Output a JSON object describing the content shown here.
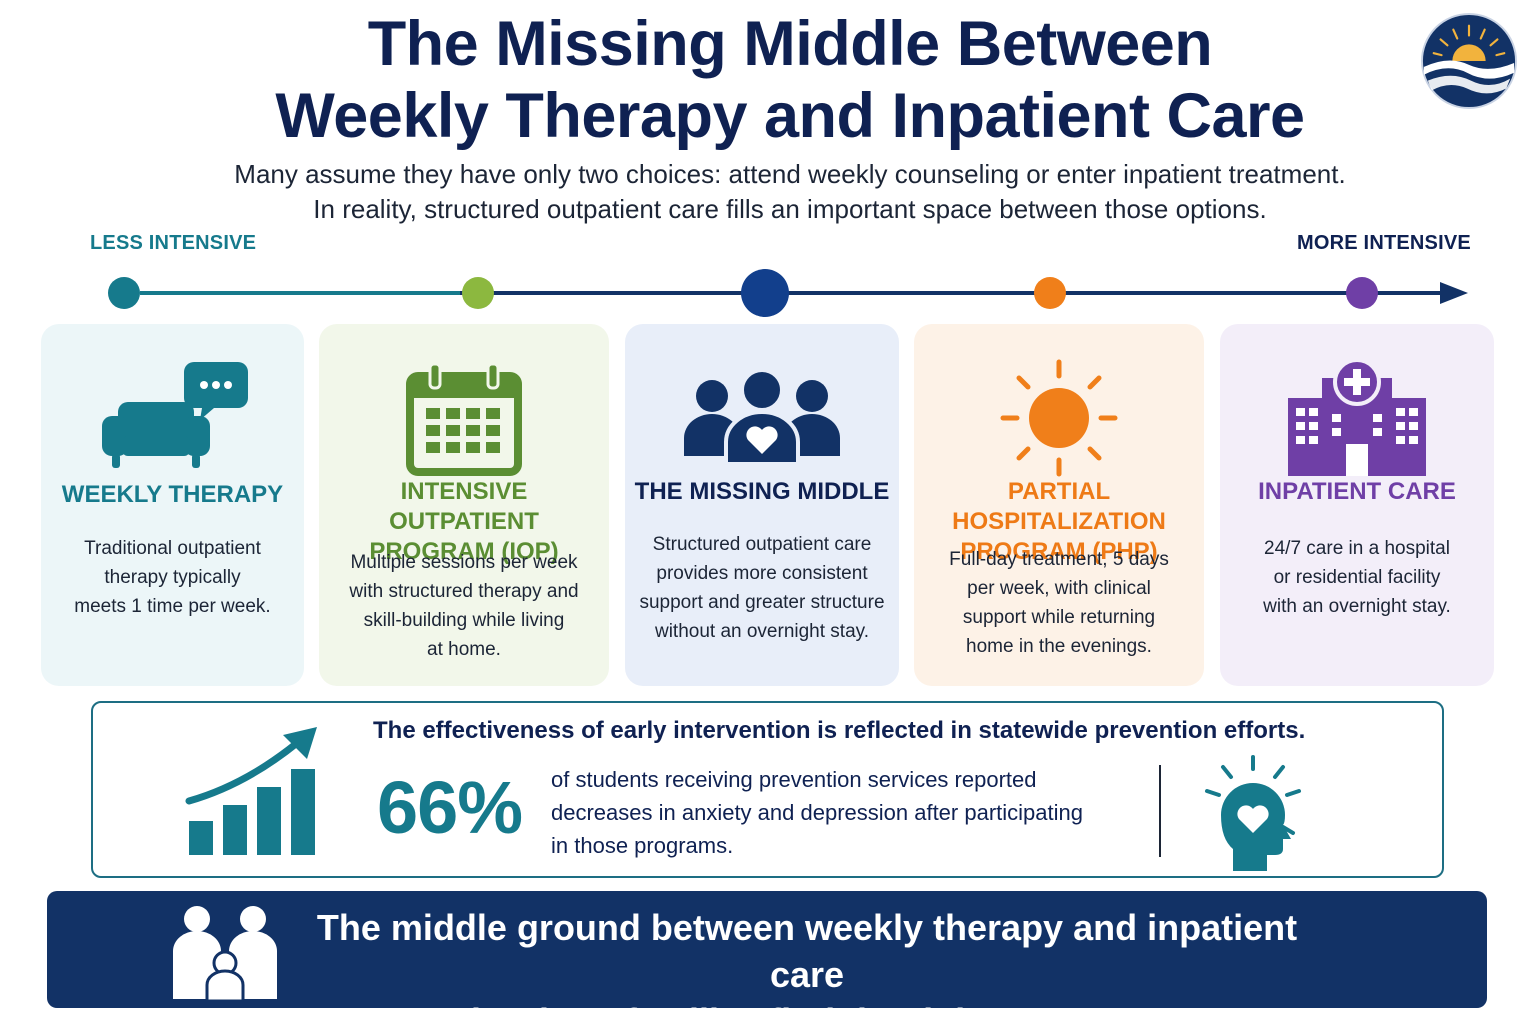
{
  "header": {
    "title_line1": "The Missing Middle Between",
    "title_line2": "Weekly Therapy and Inpatient Care",
    "subtitle_line1": "Many assume they have only two choices: attend weekly counseling or enter inpatient treatment.",
    "subtitle_line2": "In reality, structured outpatient care fills an important space between those options."
  },
  "logo": {
    "icon": "sunrise-river-logo",
    "colors": {
      "circle": "#123266",
      "sun": "#f2b33d"
    }
  },
  "scale": {
    "less_label": "LESS INTENSIVE",
    "more_label": "MORE INTENSIVE",
    "dot_colors": [
      "#167a8c",
      "#8cb83f",
      "#123f8c",
      "#f07f1a",
      "#6f3fa6"
    ],
    "line_color": "#123266"
  },
  "cards": [
    {
      "icon": "couch-speech-icon",
      "color": "#167a8c",
      "heading_line1": "WEEKLY THERAPY",
      "desc_lines": [
        "Traditional outpatient",
        "therapy typically",
        "meets 1 time per week."
      ]
    },
    {
      "icon": "calendar-icon",
      "color": "#5b8e33",
      "heading_line1": "INTENSIVE OUTPATIENT",
      "heading_line2": "PROGRAM (IOP)",
      "desc_lines": [
        "Multiple sessions per week",
        "with structured therapy and",
        "skill-building while living",
        "at home."
      ]
    },
    {
      "icon": "group-heart-icon",
      "color": "#123266",
      "heading_line1": "THE MISSING MIDDLE",
      "desc_lines": [
        "Structured outpatient care",
        "provides more consistent",
        "support and greater structure",
        "without an overnight stay."
      ]
    },
    {
      "icon": "sun-icon",
      "color": "#ee7a16",
      "heading_line1": "PARTIAL HOSPITALIZATION",
      "heading_line2": "PROGRAM (PHP)",
      "desc_lines": [
        "Full-day treatment, 5 days",
        "per week, with clinical",
        "support while returning",
        "home in the evenings."
      ]
    },
    {
      "icon": "hospital-icon",
      "color": "#6f3fa6",
      "heading_line1": "INPATIENT CARE",
      "desc_lines": [
        "24/7 care in a hospital",
        "or residential facility",
        "with an overnight stay."
      ]
    }
  ],
  "stats": {
    "headline": "The effectiveness of early intervention is reflected in statewide prevention efforts.",
    "percent": "66%",
    "value_percent": 66,
    "text_lines": [
      "of students receiving prevention services reported",
      "decreases in anxiety and depression after participating",
      "in those programs."
    ],
    "left_icon": "growth-bar-chart-icon",
    "right_icon": "head-heart-icon"
  },
  "banner": {
    "line1": "The middle ground between weekly therapy and inpatient care",
    "line2": "is where families find the right support.",
    "icon": "family-icon"
  }
}
